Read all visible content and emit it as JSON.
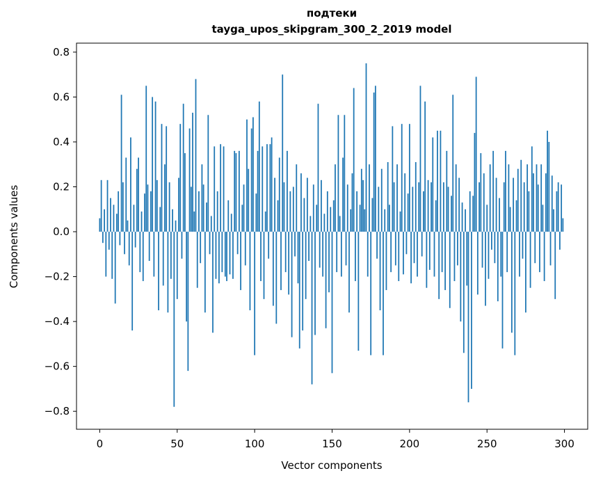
{
  "title_line1": "подтеки",
  "title_line2": "tayga_upos_skipgram_300_2_2019 model",
  "chart_data": {
    "type": "bar",
    "title": "подтеки",
    "subtitle": "tayga_upos_skipgram_300_2_2019 model",
    "xlabel": "Vector components",
    "ylabel": "Components values",
    "xlim": [
      -15,
      315
    ],
    "ylim": [
      -0.88,
      0.84
    ],
    "xticks": [
      0,
      50,
      100,
      150,
      200,
      250,
      300
    ],
    "yticks": [
      -0.8,
      -0.6,
      -0.4,
      -0.2,
      0.0,
      0.2,
      0.4,
      0.6,
      0.8
    ],
    "bar_color": "#1f77b4",
    "grid": false,
    "legend": null,
    "values": [
      0.06,
      0.23,
      -0.05,
      0.1,
      -0.2,
      0.23,
      -0.08,
      0.15,
      -0.21,
      0.12,
      -0.32,
      0.08,
      0.18,
      -0.06,
      0.61,
      0.22,
      -0.1,
      0.33,
      0.05,
      -0.15,
      0.42,
      -0.44,
      0.12,
      -0.07,
      0.28,
      0.33,
      -0.18,
      0.09,
      -0.22,
      0.17,
      0.65,
      0.21,
      -0.13,
      0.18,
      0.6,
      -0.2,
      0.58,
      0.23,
      -0.35,
      0.11,
      0.48,
      -0.24,
      0.3,
      0.47,
      -0.36,
      0.22,
      -0.21,
      0.1,
      -0.78,
      0.05,
      -0.3,
      0.24,
      0.48,
      -0.12,
      0.57,
      0.35,
      -0.4,
      -0.62,
      0.46,
      0.2,
      0.53,
      0.09,
      0.68,
      -0.25,
      0.18,
      -0.14,
      0.3,
      0.21,
      -0.36,
      0.13,
      0.52,
      -0.1,
      0.07,
      -0.45,
      0.38,
      -0.21,
      0.18,
      -0.23,
      0.39,
      -0.18,
      0.38,
      -0.2,
      -0.22,
      0.14,
      -0.19,
      0.08,
      -0.21,
      0.36,
      0.35,
      -0.1,
      0.36,
      -0.26,
      0.12,
      0.21,
      -0.15,
      0.5,
      0.28,
      -0.35,
      0.46,
      0.51,
      -0.55,
      0.17,
      0.36,
      0.58,
      -0.22,
      0.38,
      -0.3,
      0.09,
      0.39,
      -0.12,
      0.39,
      0.42,
      -0.33,
      0.24,
      -0.41,
      0.14,
      0.33,
      -0.26,
      0.7,
      0.22,
      -0.18,
      0.36,
      -0.28,
      0.18,
      -0.47,
      0.2,
      -0.11,
      0.3,
      -0.23,
      -0.52,
      0.26,
      -0.44,
      0.15,
      -0.3,
      0.24,
      -0.13,
      0.07,
      -0.68,
      0.21,
      -0.46,
      0.12,
      0.57,
      -0.16,
      0.23,
      -0.2,
      0.08,
      -0.43,
      0.18,
      -0.27,
      0.11,
      -0.63,
      0.14,
      0.3,
      -0.18,
      0.52,
      0.07,
      -0.2,
      0.33,
      0.52,
      -0.15,
      0.21,
      -0.36,
      0.1,
      0.26,
      0.64,
      -0.22,
      0.18,
      -0.53,
      0.12,
      0.28,
      0.23,
      0.1,
      0.75,
      -0.2,
      0.3,
      -0.55,
      0.15,
      0.62,
      0.65,
      -0.12,
      0.2,
      -0.35,
      0.28,
      -0.55,
      0.1,
      -0.26,
      0.31,
      0.12,
      -0.18,
      0.47,
      0.22,
      -0.15,
      0.3,
      -0.22,
      0.09,
      0.48,
      -0.19,
      0.26,
      -0.1,
      0.17,
      0.48,
      -0.23,
      0.2,
      -0.14,
      0.31,
      -0.2,
      0.22,
      0.65,
      -0.11,
      0.18,
      0.58,
      -0.25,
      0.23,
      -0.17,
      0.22,
      0.42,
      -0.2,
      0.14,
      0.45,
      -0.3,
      0.45,
      -0.18,
      0.22,
      -0.26,
      0.36,
      0.2,
      -0.34,
      0.16,
      0.61,
      -0.22,
      0.3,
      -0.15,
      0.24,
      -0.4,
      0.13,
      -0.54,
      0.1,
      -0.24,
      -0.76,
      0.18,
      -0.7,
      0.16,
      0.44,
      0.69,
      -0.28,
      0.22,
      0.35,
      -0.16,
      0.26,
      -0.33,
      0.12,
      -0.21,
      0.3,
      -0.08,
      0.36,
      -0.14,
      0.24,
      -0.31,
      0.15,
      -0.2,
      -0.52,
      0.22,
      0.36,
      -0.18,
      0.3,
      0.11,
      -0.45,
      0.24,
      -0.55,
      0.14,
      0.28,
      -0.2,
      0.32,
      -0.12,
      0.22,
      -0.36,
      0.3,
      0.18,
      -0.25,
      0.38,
      0.26,
      -0.14,
      0.3,
      0.21,
      -0.18,
      0.3,
      0.12,
      -0.22,
      0.26,
      0.45,
      0.4,
      -0.15,
      0.25,
      0.1,
      -0.3,
      0.18,
      0.22,
      -0.08,
      0.21,
      0.06
    ]
  }
}
